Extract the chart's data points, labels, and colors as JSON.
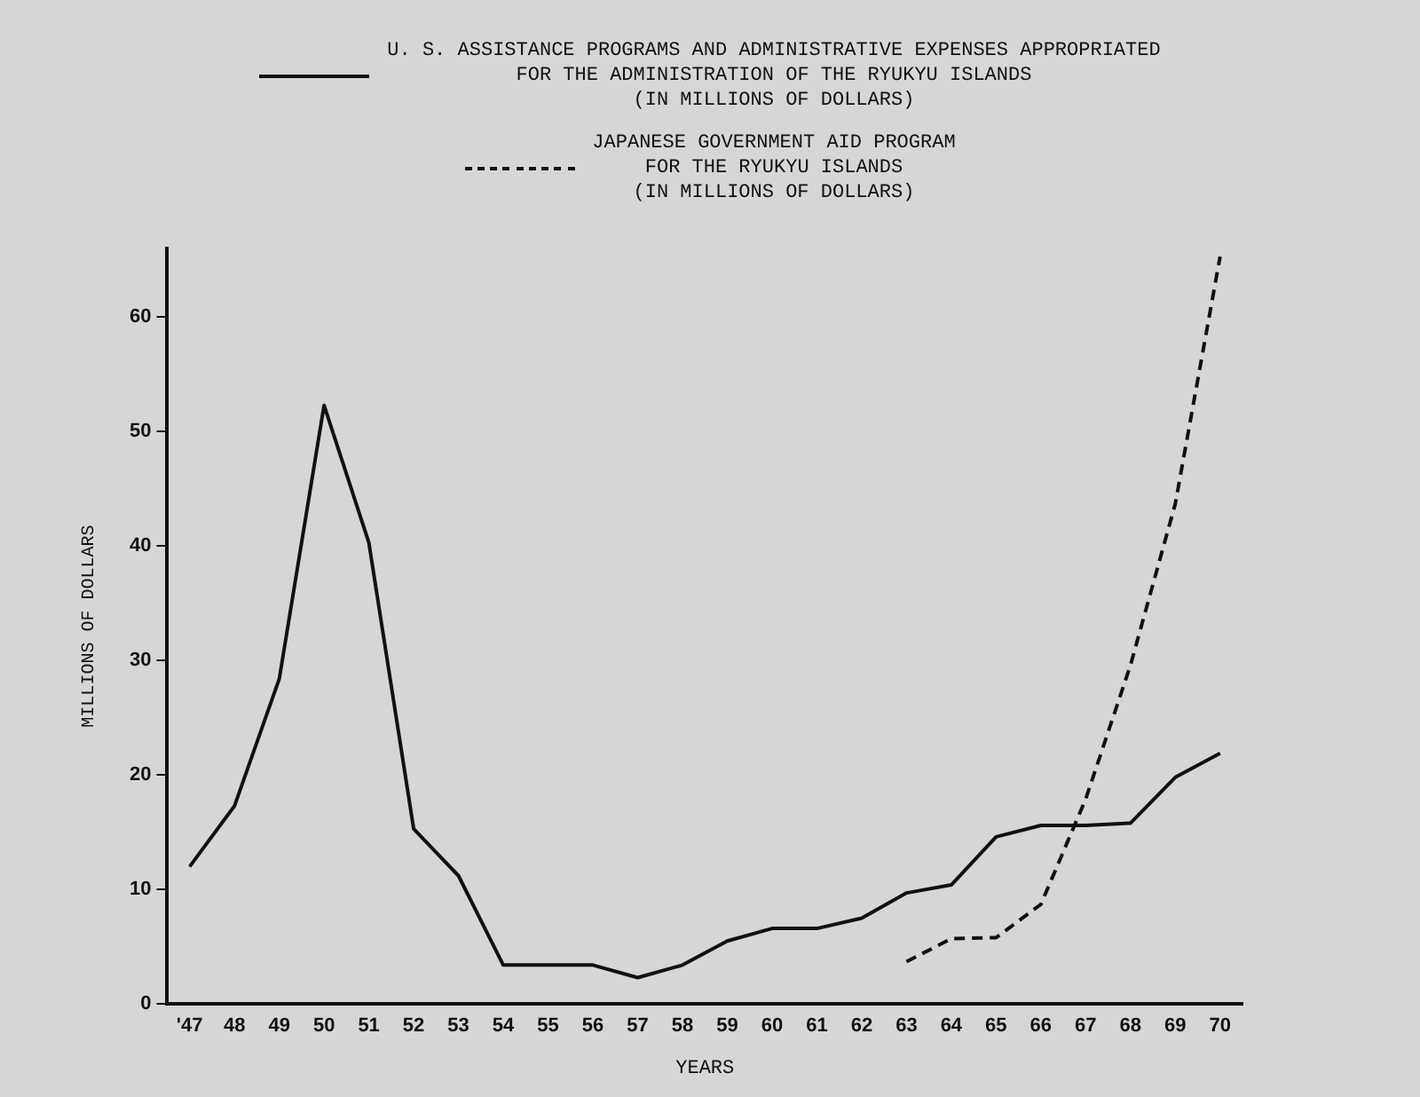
{
  "chart_data": {
    "type": "line",
    "xlabel": "YEARS",
    "ylabel": "MILLIONS OF DOLLARS",
    "categories": [
      "'47",
      "48",
      "49",
      "50",
      "51",
      "52",
      "53",
      "54",
      "55",
      "56",
      "57",
      "58",
      "59",
      "60",
      "61",
      "62",
      "63",
      "64",
      "65",
      "66",
      "67",
      "68",
      "69",
      "70"
    ],
    "series": [
      {
        "name": "U. S. ASSISTANCE PROGRAMS AND ADMINISTRATIVE EXPENSES APPROPRIATED\nFOR THE ADMINISTRATION OF THE RYUKYU ISLANDS\n(IN MILLIONS OF DOLLARS)",
        "color": "#111111",
        "line_style": "solid",
        "values": [
          12.0,
          17.3,
          28.4,
          52.3,
          40.3,
          15.3,
          11.2,
          3.4,
          3.4,
          3.4,
          2.3,
          3.4,
          5.5,
          6.6,
          6.6,
          7.5,
          9.7,
          10.4,
          14.6,
          15.6,
          15.6,
          15.8,
          19.8,
          21.9
        ]
      },
      {
        "name": "JAPANESE GOVERNMENT AID PROGRAM\nFOR THE RYUKYU ISLANDS\n(IN MILLIONS OF DOLLARS)",
        "color": "#111111",
        "line_style": "dashed",
        "values": [
          null,
          null,
          null,
          null,
          null,
          null,
          null,
          null,
          null,
          null,
          null,
          null,
          null,
          null,
          null,
          null,
          3.7,
          5.7,
          5.8,
          8.7,
          17.9,
          29.6,
          43.7,
          65.3
        ]
      }
    ],
    "ylim": [
      0,
      66
    ],
    "yticks": [
      0,
      10,
      20,
      30,
      40,
      50,
      60
    ],
    "grid": false,
    "legend": "top",
    "marker": "none"
  }
}
